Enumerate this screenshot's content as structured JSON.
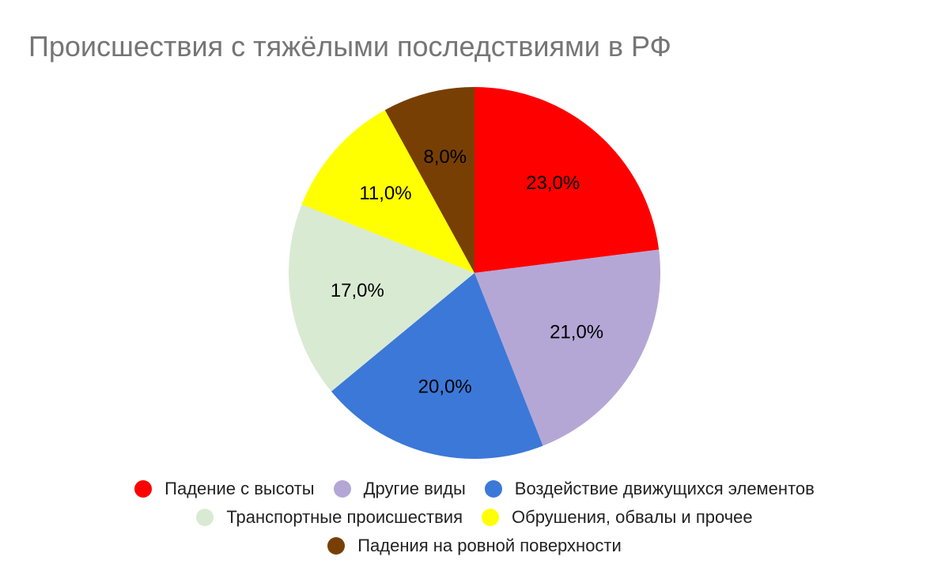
{
  "chart_data": {
    "type": "pie",
    "title": "Происшествия с тяжёлыми последствиями в РФ",
    "slices": [
      {
        "label": "Падение с высоты",
        "value": 23.0,
        "display": "23,0%",
        "color": "#ff0000"
      },
      {
        "label": "Другие виды",
        "value": 21.0,
        "display": "21,0%",
        "color": "#b4a7d6"
      },
      {
        "label": "Воздействие движущихся элементов",
        "value": 20.0,
        "display": "20,0%",
        "color": "#3c78d8"
      },
      {
        "label": "Транспортные происшествия",
        "value": 17.0,
        "display": "17,0%",
        "color": "#d9ead3"
      },
      {
        "label": "Обрушения, обвалы и прочее",
        "value": 11.0,
        "display": "11,0%",
        "color": "#ffff00"
      },
      {
        "label": "Падения на ровной поверхности",
        "value": 8.0,
        "display": "8,0%",
        "color": "#783f04"
      }
    ],
    "legend_position": "bottom"
  }
}
